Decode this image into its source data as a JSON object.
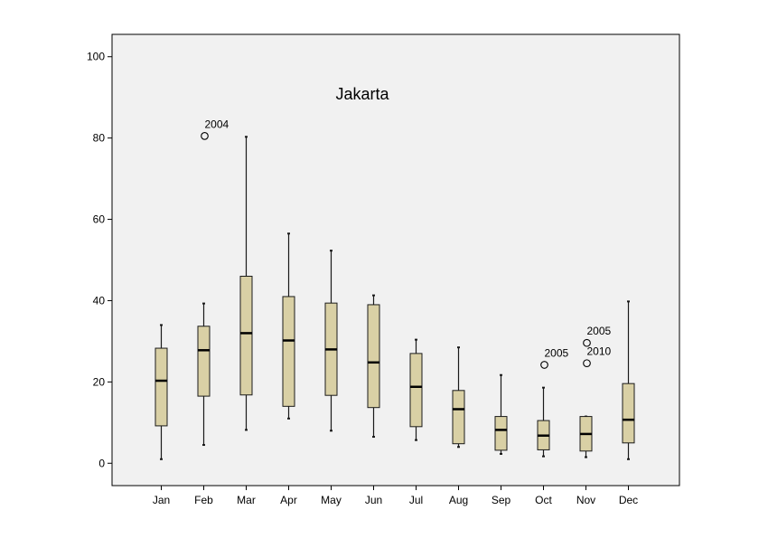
{
  "chart_data": {
    "type": "box",
    "title": "Jakarta",
    "xlabel": "",
    "ylabel": "",
    "ylim": [
      -5.5,
      105.5
    ],
    "yticks": [
      0,
      20,
      40,
      60,
      80,
      100
    ],
    "grid": false,
    "colors": {
      "plot_bg": "#f1f1f1",
      "box_fill": "#d9d0a5",
      "box_stroke": "#1a1a1a"
    },
    "categories": [
      "Jan",
      "Feb",
      "Mar",
      "Apr",
      "May",
      "Jun",
      "Jul",
      "Aug",
      "Sep",
      "Oct",
      "Nov",
      "Dec"
    ],
    "boxes": [
      {
        "min": 1,
        "q1": 9.2,
        "median": 20.3,
        "q3": 28.3,
        "max": 34
      },
      {
        "min": 4.5,
        "q1": 16.5,
        "median": 27.8,
        "q3": 33.7,
        "max": 39.3
      },
      {
        "min": 8.2,
        "q1": 16.8,
        "median": 32,
        "q3": 46,
        "max": 80.3
      },
      {
        "min": 11,
        "q1": 14,
        "median": 30.2,
        "q3": 41,
        "max": 56.5
      },
      {
        "min": 8,
        "q1": 16.7,
        "median": 28,
        "q3": 39.4,
        "max": 52.3
      },
      {
        "min": 6.5,
        "q1": 13.7,
        "median": 24.8,
        "q3": 39,
        "max": 41.3
      },
      {
        "min": 5.7,
        "q1": 9,
        "median": 18.8,
        "q3": 27,
        "max": 30.4
      },
      {
        "min": 4,
        "q1": 4.8,
        "median": 13.3,
        "q3": 17.9,
        "max": 28.5
      },
      {
        "min": 2.3,
        "q1": 3.2,
        "median": 8.2,
        "q3": 11.5,
        "max": 21.7
      },
      {
        "min": 1.7,
        "q1": 3.3,
        "median": 6.8,
        "q3": 10.5,
        "max": 18.6
      },
      {
        "min": 1.5,
        "q1": 3,
        "median": 7.2,
        "q3": 11.5,
        "max": 11.5
      },
      {
        "min": 1,
        "q1": 5,
        "median": 10.7,
        "q3": 19.6,
        "max": 39.8
      }
    ],
    "outliers": [
      {
        "category": "Feb",
        "value": 80.5,
        "label": "2004"
      },
      {
        "category": "Oct",
        "value": 24.2,
        "label": "2005"
      },
      {
        "category": "Nov",
        "value": 29.6,
        "label": "2005"
      },
      {
        "category": "Nov",
        "value": 24.6,
        "label": "2010"
      }
    ]
  }
}
